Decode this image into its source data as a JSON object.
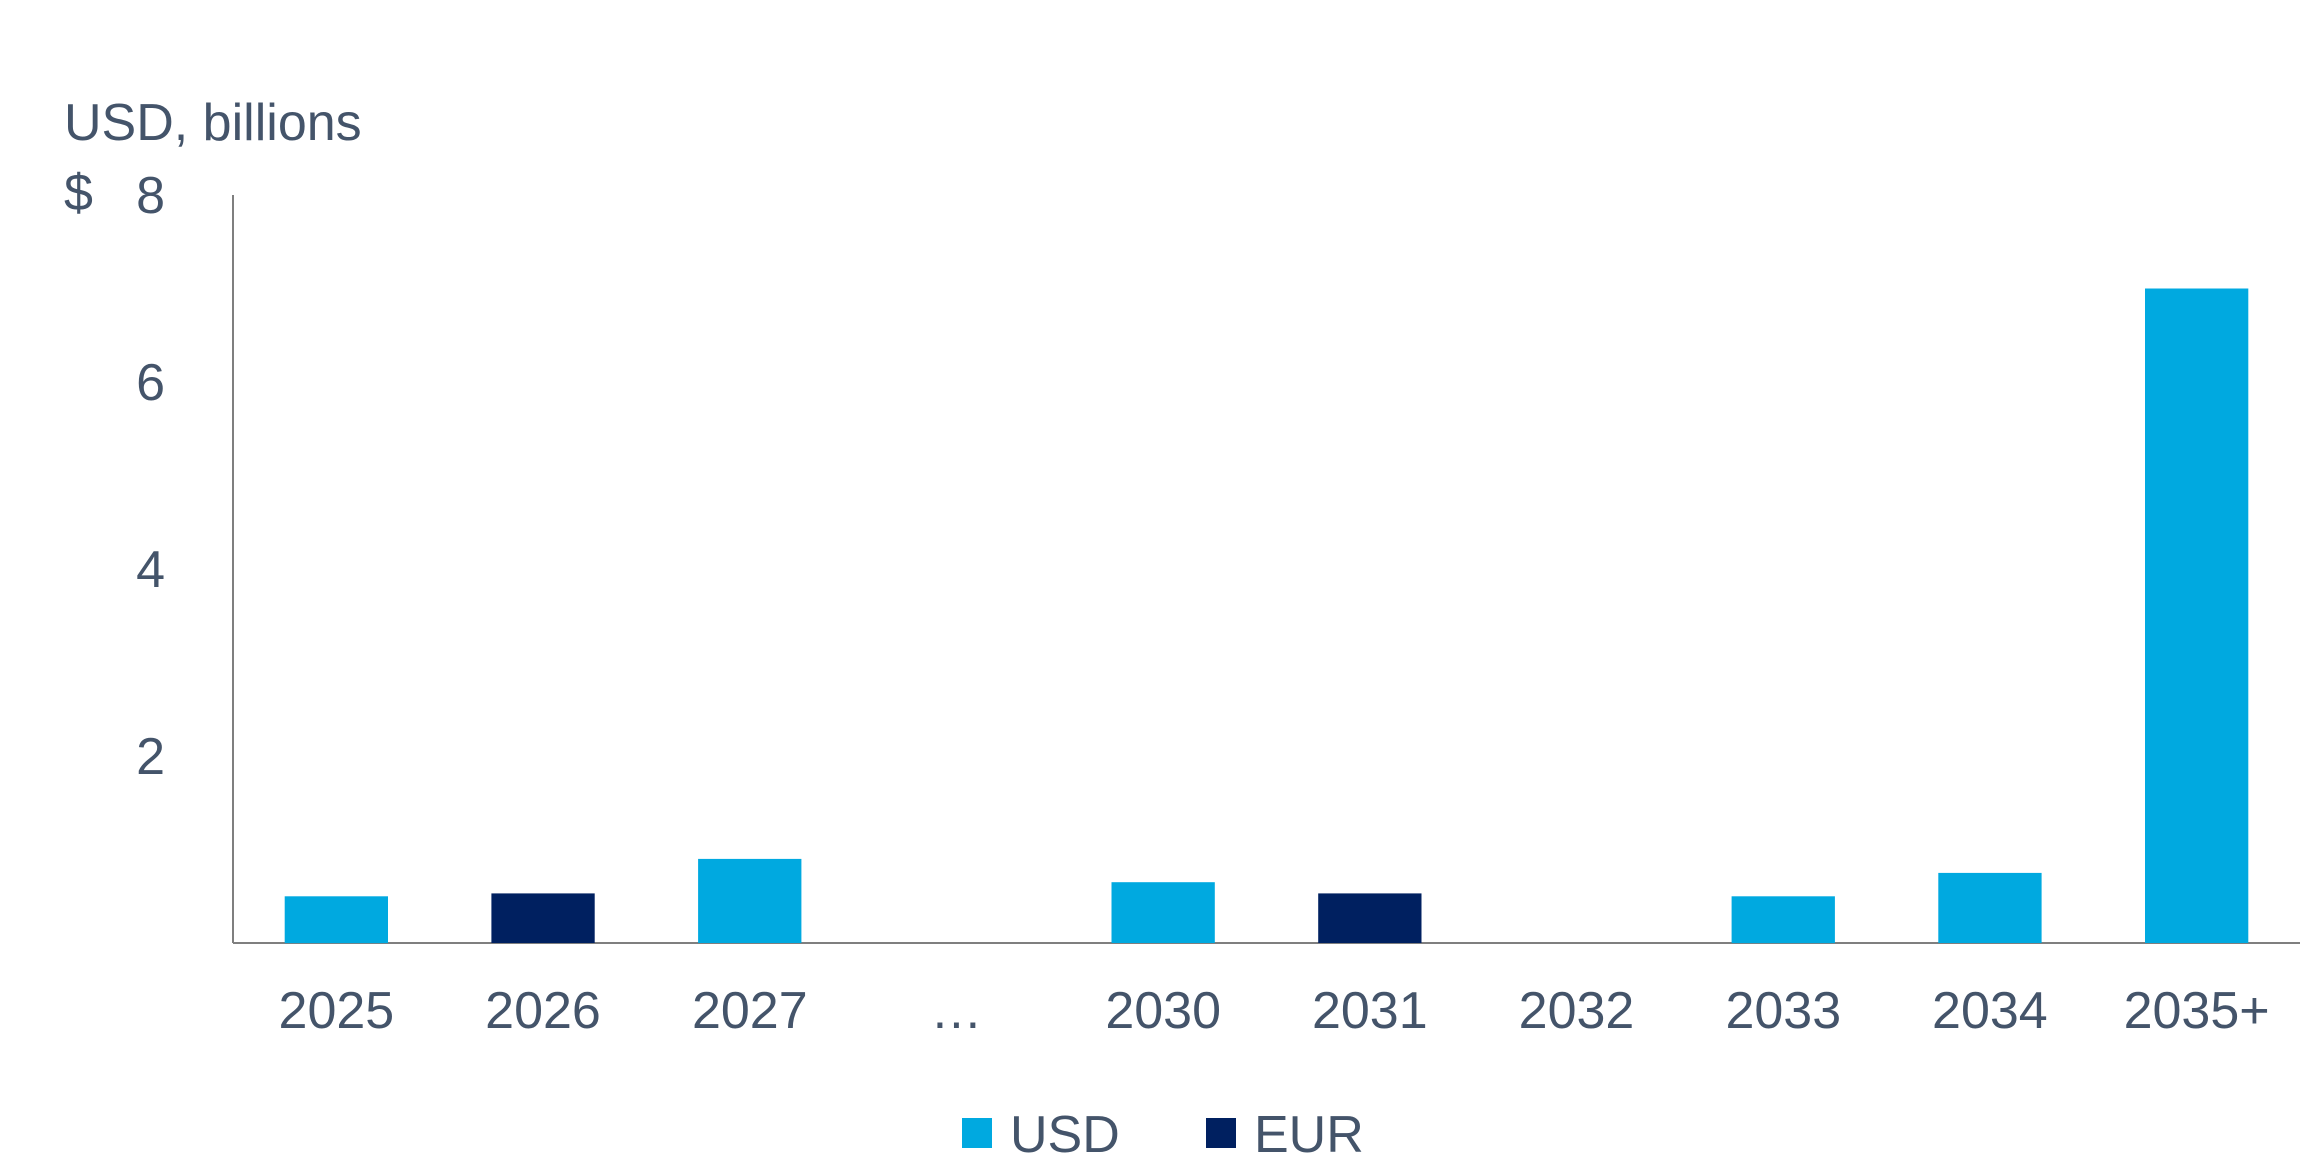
{
  "chart_data": {
    "type": "bar",
    "ylabel": "USD, billions",
    "currency_symbol": "$",
    "categories": [
      "2025",
      "2026",
      "2027",
      "…",
      "2030",
      "2031",
      "2032",
      "2033",
      "2034",
      "2035+"
    ],
    "series": [
      {
        "name": "USD",
        "color": "#00a9e0",
        "values": [
          0.5,
          null,
          0.9,
          null,
          0.65,
          null,
          null,
          0.5,
          0.75,
          7.0
        ]
      },
      {
        "name": "EUR",
        "color": "#002060",
        "values": [
          null,
          0.53,
          null,
          null,
          null,
          0.53,
          null,
          null,
          null,
          null
        ]
      }
    ],
    "ylim": [
      0,
      8
    ],
    "yticks": [
      2,
      4,
      6,
      8
    ],
    "grid": false,
    "legend": "bottom-center",
    "text_color": "#44546a",
    "axis_color": "#7f7f7f"
  }
}
